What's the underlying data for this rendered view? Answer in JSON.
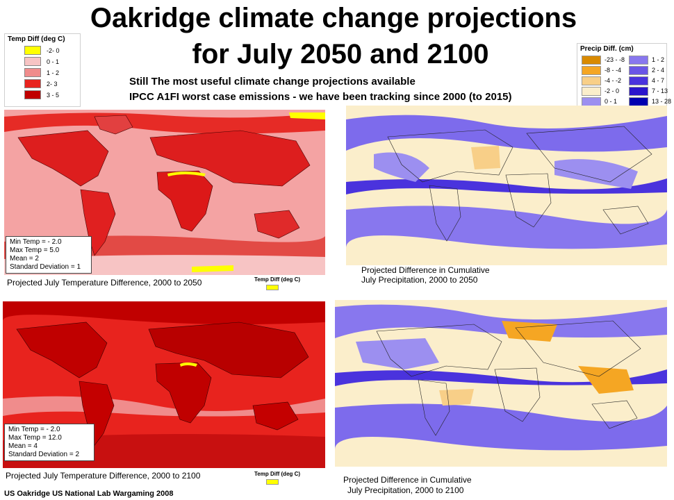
{
  "title": {
    "line1": "Oakridge climate change projections",
    "line2": "for July  2050 and 2100"
  },
  "subtitle": {
    "line1": "Still The most useful climate change projections available",
    "line2": "IPCC A1FI worst case emissions -  we have been tracking since 2000 (to 2015)"
  },
  "temp_legend": {
    "title": "Temp Diff (deg C)",
    "items": [
      {
        "label": "-2- 0",
        "color": "#ffff00"
      },
      {
        "label": "0 - 1",
        "color": "#f7c4c4"
      },
      {
        "label": "1 - 2",
        "color": "#f08c8c"
      },
      {
        "label": "2-  3",
        "color": "#e8231e"
      },
      {
        "label": "3 - 5",
        "color": "#c00000"
      }
    ]
  },
  "precip_legend": {
    "title": "Precip Diff. (cm)",
    "items": [
      {
        "label": "-23 - -8",
        "color": "#d98a00"
      },
      {
        "label": "1 - 2",
        "color": "#8877ee"
      },
      {
        "label": "-8 - -4",
        "color": "#f5a623"
      },
      {
        "label": "2 - 4",
        "color": "#6a55e6"
      },
      {
        "label": "-4 - -2",
        "color": "#f8cf88"
      },
      {
        "label": "4 - 7",
        "color": "#4a33dd"
      },
      {
        "label": "-2 - 0",
        "color": "#fbeecb"
      },
      {
        "label": "7 - 13",
        "color": "#2a15cc"
      },
      {
        "label": "0 - 1",
        "color": "#9c8ff0"
      },
      {
        "label": "13 - 28",
        "color": "#0000b0"
      }
    ]
  },
  "maps": {
    "temp2050": {
      "stats": [
        "Min Temp = - 2.0",
        "Max Temp = 5.0",
        "Mean = 2",
        "Standard Deviation = 1"
      ],
      "caption": "Projected July Temperature Difference, 2000 to 2050",
      "mini_legend": "Temp Diff (deg C)"
    },
    "precip2050": {
      "caption_line1": "Projected Difference in Cumulative",
      "caption_line2": "July Precipitation, 2000 to 2050"
    },
    "temp2100": {
      "stats": [
        "Min Temp = - 2.0",
        "Max Temp = 12.0",
        "Mean = 4",
        "Standard Deviation = 2"
      ],
      "caption": "Projected July Temperature Difference, 2000 to 2100",
      "mini_legend": "Temp Diff (deg C)"
    },
    "precip2100": {
      "caption_line1": "Projected Difference in Cumulative",
      "caption_line2": "July Precipitation, 2000 to 2100"
    }
  },
  "footer": "US Oakridge US National Lab Wargaming 2008"
}
